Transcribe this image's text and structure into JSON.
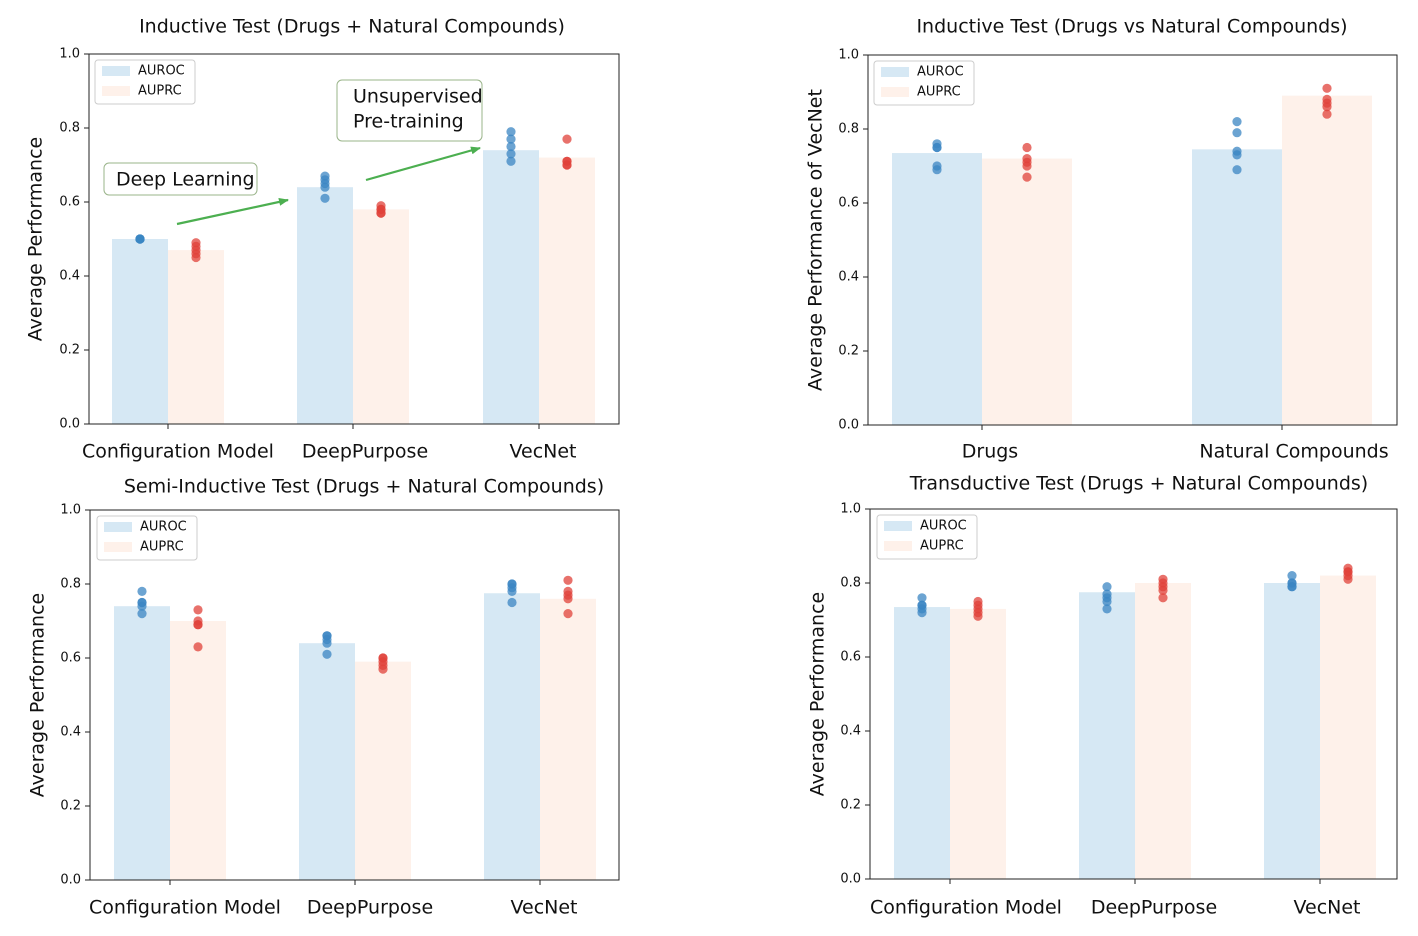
{
  "colors": {
    "auroc_bar": "#d6e8f4",
    "auprc_bar": "#fef1ea",
    "auroc_point": "#3b86c3",
    "auprc_point": "#e0413a",
    "arrow": "#4caf50",
    "annotation_border": "#9ab48a"
  },
  "chart_data": [
    {
      "type": "bar",
      "title": "Inductive Test (Drugs + Natural Compounds)",
      "ylabel": "Average Performance",
      "xlabel": "",
      "ylim": [
        0,
        1.0
      ],
      "yticks": [
        "0.0",
        "0.2",
        "0.4",
        "0.6",
        "0.8",
        "1.0"
      ],
      "categories": [
        "Configuration Model",
        "DeepPurpose",
        "VecNet"
      ],
      "legend": {
        "placement": "top-left"
      },
      "series": [
        {
          "name": "AUROC",
          "values": [
            0.5,
            0.64,
            0.74
          ],
          "points": [
            [
              0.5,
              0.5,
              0.5,
              0.5,
              0.5
            ],
            [
              0.67,
              0.66,
              0.65,
              0.64,
              0.61
            ],
            [
              0.79,
              0.77,
              0.75,
              0.73,
              0.71
            ]
          ]
        },
        {
          "name": "AUPRC",
          "values": [
            0.47,
            0.58,
            0.72
          ],
          "points": [
            [
              0.49,
              0.48,
              0.47,
              0.46,
              0.45
            ],
            [
              0.59,
              0.58,
              0.58,
              0.57,
              0.57
            ],
            [
              0.77,
              0.71,
              0.71,
              0.7,
              0.7
            ]
          ]
        }
      ],
      "annotations": [
        {
          "text": [
            "Deep Learning"
          ]
        },
        {
          "text": [
            "Unsupervised",
            "Pre-training"
          ]
        }
      ]
    },
    {
      "type": "bar",
      "title": "Inductive Test (Drugs vs Natural Compounds)",
      "ylabel": "Average Performance of VecNet",
      "xlabel": "",
      "ylim": [
        0,
        1.0
      ],
      "yticks": [
        "0.0",
        "0.2",
        "0.4",
        "0.6",
        "0.8",
        "1.0"
      ],
      "categories": [
        "Drugs",
        "Natural Compounds"
      ],
      "legend": {
        "placement": "top-left"
      },
      "series": [
        {
          "name": "AUROC",
          "values": [
            0.735,
            0.745
          ],
          "points": [
            [
              0.76,
              0.75,
              0.75,
              0.7,
              0.69
            ],
            [
              0.82,
              0.79,
              0.74,
              0.73,
              0.69
            ]
          ]
        },
        {
          "name": "AUPRC",
          "values": [
            0.72,
            0.89
          ],
          "points": [
            [
              0.75,
              0.72,
              0.71,
              0.7,
              0.67
            ],
            [
              0.91,
              0.88,
              0.87,
              0.86,
              0.84
            ]
          ]
        }
      ]
    },
    {
      "type": "bar",
      "title": "Semi-Inductive Test (Drugs + Natural Compounds)",
      "ylabel": "Average Performance",
      "xlabel": "",
      "ylim": [
        0,
        1.0
      ],
      "yticks": [
        "0.0",
        "0.2",
        "0.4",
        "0.6",
        "0.8",
        "1.0"
      ],
      "categories": [
        "Configuration Model",
        "DeepPurpose",
        "VecNet"
      ],
      "legend": {
        "placement": "top-left"
      },
      "series": [
        {
          "name": "AUROC",
          "values": [
            0.74,
            0.64,
            0.775
          ],
          "points": [
            [
              0.78,
              0.75,
              0.75,
              0.74,
              0.72
            ],
            [
              0.66,
              0.66,
              0.65,
              0.64,
              0.61
            ],
            [
              0.8,
              0.8,
              0.79,
              0.78,
              0.75
            ]
          ]
        },
        {
          "name": "AUPRC",
          "values": [
            0.7,
            0.59,
            0.76
          ],
          "points": [
            [
              0.73,
              0.7,
              0.69,
              0.69,
              0.63
            ],
            [
              0.6,
              0.6,
              0.59,
              0.58,
              0.57
            ],
            [
              0.81,
              0.78,
              0.77,
              0.76,
              0.72
            ]
          ]
        }
      ]
    },
    {
      "type": "bar",
      "title": "Transductive Test (Drugs + Natural Compounds)",
      "ylabel": "Average Performance",
      "xlabel": "",
      "ylim": [
        0,
        1.0
      ],
      "yticks": [
        "0.0",
        "0.2",
        "0.4",
        "0.6",
        "0.8",
        "1.0"
      ],
      "categories": [
        "Configuration Model",
        "DeepPurpose",
        "VecNet"
      ],
      "legend": {
        "placement": "top-left"
      },
      "series": [
        {
          "name": "AUROC",
          "values": [
            0.735,
            0.775,
            0.8
          ],
          "points": [
            [
              0.76,
              0.74,
              0.74,
              0.73,
              0.72
            ],
            [
              0.79,
              0.77,
              0.76,
              0.75,
              0.73
            ],
            [
              0.82,
              0.8,
              0.8,
              0.79,
              0.79
            ]
          ]
        },
        {
          "name": "AUPRC",
          "values": [
            0.73,
            0.8,
            0.82
          ],
          "points": [
            [
              0.75,
              0.74,
              0.73,
              0.72,
              0.71
            ],
            [
              0.81,
              0.8,
              0.79,
              0.78,
              0.76
            ],
            [
              0.84,
              0.83,
              0.83,
              0.82,
              0.81
            ]
          ]
        }
      ]
    }
  ]
}
